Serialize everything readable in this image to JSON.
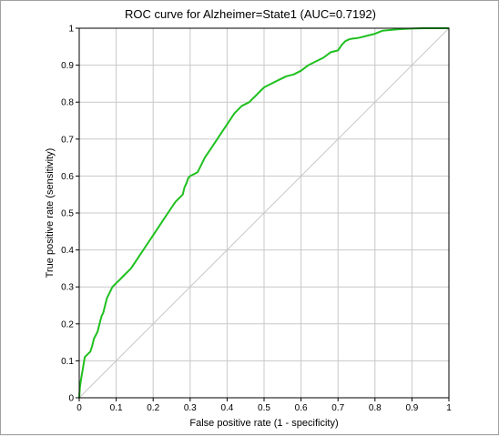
{
  "chart_data": {
    "type": "line",
    "title": "ROC curve for Alzheimer=State1 (AUC=0.7192)",
    "xlabel": "False positive rate (1 - specificity)",
    "ylabel": "True positive rate (sensitivity)",
    "xlim": [
      0,
      1
    ],
    "ylim": [
      0,
      1
    ],
    "x_ticks": [
      "0",
      "0.1",
      "0.2",
      "0.3",
      "0.4",
      "0.5",
      "0.6",
      "0.7",
      "0.8",
      "0.9",
      "1"
    ],
    "y_ticks": [
      "0",
      "0.1",
      "0.2",
      "0.3",
      "0.4",
      "0.5",
      "0.6",
      "0.7",
      "0.8",
      "0.9",
      "1"
    ],
    "grid": true,
    "legend": "none",
    "colors": {
      "roc": "#1fc01f",
      "diagonal": "#c8c8c8",
      "grid": "#c8c8c8"
    },
    "series": [
      {
        "x": [
          0,
          0.002,
          0.005,
          0.01,
          0.015,
          0.02,
          0.03,
          0.035,
          0.04,
          0.045,
          0.05,
          0.055,
          0.06,
          0.065,
          0.07,
          0.075,
          0.08,
          0.085,
          0.09,
          0.1,
          0.11,
          0.12,
          0.14,
          0.16,
          0.18,
          0.2,
          0.22,
          0.24,
          0.26,
          0.27,
          0.28,
          0.285,
          0.29,
          0.295,
          0.3,
          0.31,
          0.32,
          0.33,
          0.34,
          0.36,
          0.38,
          0.4,
          0.42,
          0.44,
          0.46,
          0.47,
          0.48,
          0.49,
          0.5,
          0.51,
          0.52,
          0.54,
          0.56,
          0.58,
          0.6,
          0.62,
          0.64,
          0.66,
          0.68,
          0.7,
          0.71,
          0.72,
          0.73,
          0.74,
          0.75,
          0.76,
          0.78,
          0.8,
          0.82,
          0.84,
          0.86,
          0.88,
          0.9,
          0.93,
          0.96,
          1.0
        ],
        "y": [
          0,
          0.03,
          0.05,
          0.08,
          0.11,
          0.115,
          0.125,
          0.14,
          0.16,
          0.17,
          0.18,
          0.2,
          0.22,
          0.23,
          0.25,
          0.27,
          0.28,
          0.29,
          0.3,
          0.31,
          0.32,
          0.33,
          0.35,
          0.38,
          0.41,
          0.44,
          0.47,
          0.5,
          0.53,
          0.54,
          0.55,
          0.57,
          0.58,
          0.595,
          0.6,
          0.605,
          0.61,
          0.63,
          0.65,
          0.68,
          0.71,
          0.74,
          0.77,
          0.79,
          0.8,
          0.81,
          0.82,
          0.83,
          0.84,
          0.845,
          0.85,
          0.86,
          0.87,
          0.875,
          0.885,
          0.9,
          0.91,
          0.92,
          0.935,
          0.94,
          0.955,
          0.965,
          0.97,
          0.972,
          0.973,
          0.975,
          0.98,
          0.985,
          0.993,
          0.995,
          0.997,
          0.998,
          0.999,
          1.0,
          1.0,
          1.0
        ]
      }
    ]
  }
}
